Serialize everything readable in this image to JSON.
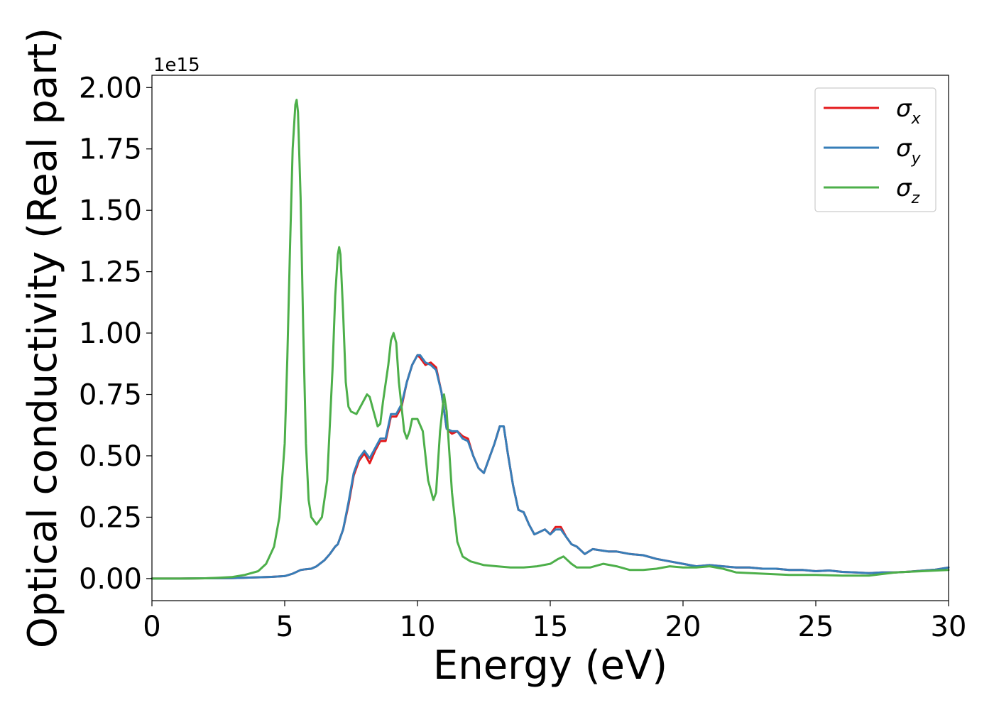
{
  "chart_data": {
    "type": "line",
    "xlabel": "Energy (eV)",
    "ylabel": "Optical conductivity (Real part)",
    "offset_text": "1e15",
    "y_scale_factor": 1000000000000000.0,
    "xlim": [
      0,
      30
    ],
    "ylim": [
      -0.09,
      2.05
    ],
    "x_ticks": [
      0,
      5,
      10,
      15,
      20,
      25,
      30
    ],
    "x_tick_labels": [
      "0",
      "5",
      "10",
      "15",
      "20",
      "25",
      "30"
    ],
    "y_ticks": [
      0.0,
      0.25,
      0.5,
      0.75,
      1.0,
      1.25,
      1.5,
      1.75,
      2.0
    ],
    "y_tick_labels": [
      "0.00",
      "0.25",
      "0.50",
      "0.75",
      "1.00",
      "1.25",
      "1.50",
      "1.75",
      "2.00"
    ],
    "grid": false,
    "legend_position": "top-right",
    "series": [
      {
        "name": "σx",
        "legend_base": "σ",
        "legend_sub": "x",
        "color": "#e41a1c",
        "x": [
          0,
          1,
          2,
          3,
          4,
          4.5,
          5,
          5.3,
          5.6,
          5.8,
          6.0,
          6.2,
          6.5,
          6.7,
          6.9,
          7.0,
          7.2,
          7.4,
          7.6,
          7.8,
          8.0,
          8.2,
          8.4,
          8.6,
          8.8,
          9.0,
          9.2,
          9.4,
          9.6,
          9.8,
          10.0,
          10.1,
          10.3,
          10.5,
          10.7,
          10.9,
          11.1,
          11.3,
          11.5,
          11.7,
          11.9,
          12.1,
          12.3,
          12.5,
          12.7,
          12.9,
          13.1,
          13.25,
          13.4,
          13.6,
          13.8,
          14.0,
          14.2,
          14.4,
          14.6,
          14.8,
          15.0,
          15.2,
          15.4,
          15.6,
          15.8,
          16.0,
          16.3,
          16.6,
          16.9,
          17.2,
          17.5,
          18.0,
          18.5,
          19.0,
          19.5,
          20.0,
          20.5,
          21.0,
          21.5,
          22.0,
          22.5,
          23.0,
          23.5,
          24.0,
          24.5,
          25.0,
          25.5,
          26.0,
          26.5,
          27.0,
          27.5,
          28.0,
          28.5,
          29.0,
          29.5,
          30.0
        ],
        "y": [
          0.0,
          0.0,
          0.001,
          0.002,
          0.005,
          0.007,
          0.01,
          0.02,
          0.035,
          0.038,
          0.04,
          0.05,
          0.075,
          0.1,
          0.13,
          0.14,
          0.2,
          0.3,
          0.42,
          0.48,
          0.51,
          0.47,
          0.52,
          0.56,
          0.56,
          0.66,
          0.66,
          0.7,
          0.8,
          0.87,
          0.91,
          0.9,
          0.87,
          0.88,
          0.86,
          0.76,
          0.61,
          0.59,
          0.6,
          0.58,
          0.57,
          0.5,
          0.45,
          0.43,
          0.49,
          0.55,
          0.62,
          0.62,
          0.51,
          0.38,
          0.28,
          0.27,
          0.22,
          0.18,
          0.19,
          0.2,
          0.18,
          0.21,
          0.21,
          0.17,
          0.14,
          0.13,
          0.1,
          0.12,
          0.115,
          0.11,
          0.11,
          0.1,
          0.095,
          0.08,
          0.07,
          0.06,
          0.05,
          0.055,
          0.05,
          0.045,
          0.045,
          0.04,
          0.04,
          0.035,
          0.035,
          0.03,
          0.033,
          0.027,
          0.025,
          0.022,
          0.025,
          0.025,
          0.028,
          0.032,
          0.036,
          0.045
        ]
      },
      {
        "name": "σy",
        "legend_base": "σ",
        "legend_sub": "y",
        "color": "#377eb8",
        "x": [
          0,
          1,
          2,
          3,
          4,
          4.5,
          5,
          5.3,
          5.6,
          5.8,
          6.0,
          6.2,
          6.5,
          6.7,
          6.9,
          7.0,
          7.2,
          7.4,
          7.6,
          7.8,
          8.0,
          8.2,
          8.4,
          8.6,
          8.8,
          9.0,
          9.2,
          9.4,
          9.6,
          9.8,
          10.0,
          10.1,
          10.3,
          10.5,
          10.7,
          10.9,
          11.1,
          11.3,
          11.5,
          11.7,
          11.9,
          12.1,
          12.3,
          12.5,
          12.7,
          12.9,
          13.1,
          13.25,
          13.4,
          13.6,
          13.8,
          14.0,
          14.2,
          14.4,
          14.6,
          14.8,
          15.0,
          15.2,
          15.4,
          15.6,
          15.8,
          16.0,
          16.3,
          16.6,
          16.9,
          17.2,
          17.5,
          18.0,
          18.5,
          19.0,
          19.5,
          20.0,
          20.5,
          21.0,
          21.5,
          22.0,
          22.5,
          23.0,
          23.5,
          24.0,
          24.5,
          25.0,
          25.5,
          26.0,
          26.5,
          27.0,
          27.5,
          28.0,
          28.5,
          29.0,
          29.5,
          30.0
        ],
        "y": [
          0.0,
          0.0,
          0.001,
          0.002,
          0.005,
          0.007,
          0.01,
          0.02,
          0.035,
          0.038,
          0.04,
          0.05,
          0.075,
          0.1,
          0.13,
          0.14,
          0.2,
          0.31,
          0.43,
          0.49,
          0.52,
          0.49,
          0.53,
          0.57,
          0.57,
          0.67,
          0.67,
          0.71,
          0.8,
          0.87,
          0.91,
          0.91,
          0.88,
          0.87,
          0.85,
          0.76,
          0.61,
          0.6,
          0.6,
          0.57,
          0.56,
          0.5,
          0.45,
          0.43,
          0.49,
          0.55,
          0.62,
          0.62,
          0.51,
          0.38,
          0.28,
          0.27,
          0.22,
          0.18,
          0.19,
          0.2,
          0.18,
          0.2,
          0.2,
          0.17,
          0.14,
          0.13,
          0.1,
          0.12,
          0.115,
          0.11,
          0.11,
          0.1,
          0.095,
          0.08,
          0.07,
          0.06,
          0.05,
          0.055,
          0.05,
          0.045,
          0.045,
          0.04,
          0.04,
          0.035,
          0.035,
          0.03,
          0.033,
          0.027,
          0.025,
          0.022,
          0.025,
          0.025,
          0.028,
          0.032,
          0.036,
          0.045
        ]
      },
      {
        "name": "σz",
        "legend_base": "σ",
        "legend_sub": "z",
        "color": "#4daf4a",
        "x": [
          0,
          1,
          2,
          2.5,
          3,
          3.5,
          4,
          4.3,
          4.6,
          4.8,
          5.0,
          5.1,
          5.2,
          5.3,
          5.4,
          5.45,
          5.5,
          5.6,
          5.7,
          5.8,
          5.9,
          6.0,
          6.2,
          6.4,
          6.6,
          6.8,
          6.9,
          7.0,
          7.05,
          7.1,
          7.2,
          7.3,
          7.4,
          7.5,
          7.7,
          7.9,
          8.1,
          8.2,
          8.3,
          8.5,
          8.6,
          8.7,
          8.9,
          9.0,
          9.1,
          9.2,
          9.3,
          9.5,
          9.6,
          9.7,
          9.8,
          10.0,
          10.2,
          10.4,
          10.6,
          10.7,
          10.85,
          11.0,
          11.1,
          11.3,
          11.5,
          11.7,
          12.0,
          12.5,
          13.0,
          13.5,
          14.0,
          14.5,
          15.0,
          15.3,
          15.5,
          15.8,
          16.0,
          16.5,
          17.0,
          17.5,
          18.0,
          18.5,
          19.0,
          19.5,
          20.0,
          20.5,
          21.0,
          21.5,
          22.0,
          23.0,
          24.0,
          25.0,
          26.0,
          27.0,
          28.0,
          29.0,
          30.0
        ],
        "y": [
          0.0,
          0.0,
          0.001,
          0.003,
          0.006,
          0.015,
          0.03,
          0.06,
          0.13,
          0.25,
          0.55,
          0.9,
          1.35,
          1.75,
          1.93,
          1.95,
          1.9,
          1.55,
          1.0,
          0.55,
          0.32,
          0.25,
          0.22,
          0.25,
          0.4,
          0.85,
          1.15,
          1.32,
          1.35,
          1.32,
          1.08,
          0.8,
          0.7,
          0.68,
          0.67,
          0.71,
          0.75,
          0.74,
          0.7,
          0.62,
          0.63,
          0.72,
          0.87,
          0.97,
          1.0,
          0.96,
          0.8,
          0.6,
          0.57,
          0.6,
          0.65,
          0.65,
          0.6,
          0.4,
          0.32,
          0.35,
          0.6,
          0.75,
          0.68,
          0.35,
          0.15,
          0.09,
          0.07,
          0.055,
          0.05,
          0.045,
          0.045,
          0.05,
          0.06,
          0.08,
          0.09,
          0.06,
          0.045,
          0.045,
          0.06,
          0.05,
          0.035,
          0.035,
          0.04,
          0.05,
          0.045,
          0.045,
          0.05,
          0.04,
          0.025,
          0.02,
          0.015,
          0.015,
          0.012,
          0.012,
          0.025,
          0.03,
          0.035
        ]
      }
    ]
  }
}
